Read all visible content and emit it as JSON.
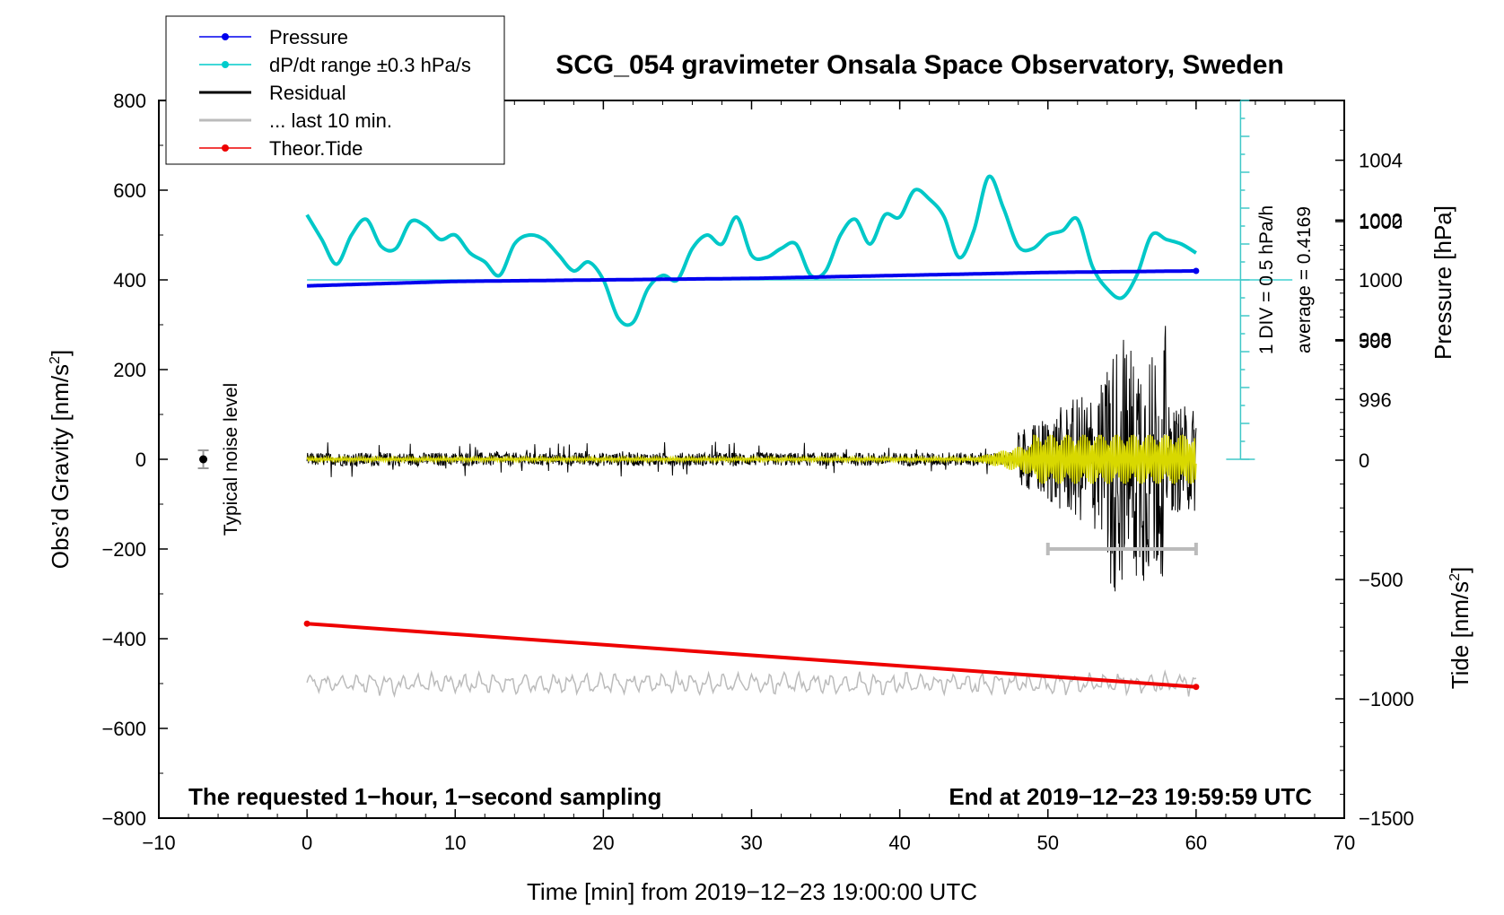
{
  "chart_data": {
    "type": "line",
    "title": "SCG_054 gravimeter Onsala Space Observatory, Sweden",
    "xlabel": "Time [min] from 2019−12−23 19:00:00 UTC",
    "ylabel_left": "Obs’d Gravity [nm/s",
    "ylabel_left_sup": "2",
    "ylabel_left_end": "]",
    "ylabel_right_pressure": "Pressure [hPa]",
    "ylabel_right_tide": "Tide [nm/s",
    "ylabel_right_tide_sup": "2",
    "ylabel_right_tide_end": "]",
    "xlim": [
      -10,
      70
    ],
    "ylim": [
      -800,
      800
    ],
    "x_ticks": [
      -10,
      0,
      10,
      20,
      30,
      40,
      50,
      60,
      70
    ],
    "x_tick_labels": [
      "−10",
      "0",
      "10",
      "20",
      "30",
      "40",
      "50",
      "60",
      "70"
    ],
    "y_ticks": [
      -800,
      -600,
      -400,
      -200,
      0,
      200,
      400,
      600,
      800
    ],
    "y_tick_labels": [
      "−800",
      "−600",
      "−400",
      "−200",
      "0",
      "200",
      "400",
      "600",
      "800"
    ],
    "pressure_ticks": [
      996,
      998,
      1000,
      1002,
      1004
    ],
    "pressure_tick_labels": [
      "996",
      "998",
      "1000",
      "1002",
      "1004"
    ],
    "tide_ticks": [
      -1500,
      -1000,
      -500,
      0,
      500,
      1000
    ],
    "tide_tick_labels": [
      "−1500",
      "−1000",
      "−500",
      "0",
      "500",
      "1000"
    ],
    "legend": {
      "position": "top-left",
      "entries": [
        {
          "label": "Pressure",
          "color": "#0000ee",
          "marker": true
        },
        {
          "label": "dP/dt range ±0.3 hPa/s",
          "color": "#00cccc",
          "marker": true
        },
        {
          "label": "Residual",
          "color": "#000000",
          "marker": false
        },
        {
          "label": "... last 10 min.",
          "color": "#bbbbbb",
          "marker": false
        },
        {
          "label": "Theor.Tide",
          "color": "#ee0000",
          "marker": true
        }
      ]
    },
    "annotations": {
      "noise_label": "Typical noise level",
      "div_label": "1 DIV = 0.5 hPa/h",
      "average_label": "average = 0.4169",
      "bottom_left": "The requested 1−hour, 1−second sampling",
      "bottom_right": "End at 2019−12−23 19:59:59 UTC"
    },
    "series": [
      {
        "name": "Pressure",
        "color": "#0000ee",
        "units": "hPa",
        "x": [
          0,
          10,
          20,
          30,
          40,
          50,
          60
        ],
        "y": [
          999.8,
          999.95,
          1000.0,
          1000.05,
          1000.15,
          1000.25,
          1000.3
        ]
      },
      {
        "name": "dP/dt",
        "color": "#00c8c8",
        "units": "nm/s2 plot scale",
        "x": [
          0,
          1,
          2,
          3,
          4,
          5,
          6,
          7,
          8,
          9,
          10,
          11,
          12,
          13,
          14,
          15,
          16,
          17,
          18,
          19,
          20,
          21,
          22,
          23,
          24,
          25,
          26,
          27,
          28,
          29,
          30,
          31,
          32,
          33,
          34,
          35,
          36,
          37,
          38,
          39,
          40,
          41,
          42,
          43,
          44,
          45,
          46,
          47,
          48,
          49,
          50,
          51,
          52,
          53,
          54,
          55,
          56,
          57,
          58,
          59,
          60
        ],
        "y": [
          545,
          490,
          435,
          500,
          535,
          475,
          470,
          530,
          520,
          490,
          500,
          460,
          440,
          410,
          480,
          500,
          490,
          455,
          420,
          440,
          400,
          315,
          305,
          380,
          410,
          400,
          470,
          500,
          480,
          540,
          455,
          450,
          470,
          480,
          410,
          420,
          500,
          535,
          480,
          545,
          540,
          600,
          580,
          540,
          450,
          510,
          630,
          560,
          475,
          470,
          500,
          510,
          535,
          430,
          380,
          360,
          410,
          500,
          490,
          480,
          460
        ]
      },
      {
        "name": "Residual",
        "color": "#000000",
        "x_range": [
          0,
          60
        ],
        "y_range": [
          -320,
          380
        ]
      },
      {
        "name": "Residual lowpass",
        "color": "#d8d800",
        "x_range": [
          0,
          60
        ],
        "y_range": [
          -60,
          60
        ]
      },
      {
        "name": "... last 10 min.",
        "color": "#bbbbbb",
        "x_range": [
          50,
          60
        ],
        "y_value": -200
      },
      {
        "name": "Residual spectrum trace",
        "color": "#bbbbbb",
        "x_range": [
          0,
          60
        ],
        "y_center": -500
      },
      {
        "name": "Theor.Tide",
        "color": "#ee0000",
        "units": "nm/s2",
        "x": [
          0,
          60
        ],
        "y": [
          -685,
          -950
        ]
      }
    ],
    "noise_point": {
      "x": -7,
      "y": 0,
      "err": 20
    },
    "dpdt_axis": {
      "x": 63.0,
      "y_range": [
        0,
        800
      ],
      "baseline": 400
    }
  }
}
